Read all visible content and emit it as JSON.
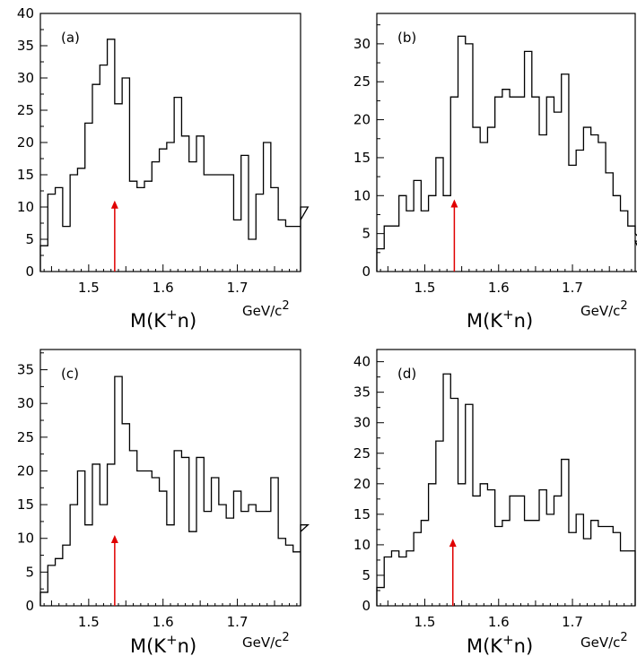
{
  "chart_data": [
    {
      "type": "histogram",
      "panel_label": "(a)",
      "xlabel_main": "M(K",
      "xlabel_sup": "+",
      "xlabel_tail": "n)",
      "xunit_main": "GeV/c",
      "xunit_sup": "2",
      "xlim": [
        1.435,
        1.785
      ],
      "ylim": [
        0,
        40
      ],
      "xticks": [
        1.5,
        1.6,
        1.7
      ],
      "xtick_labels": [
        "1.5",
        "1.6",
        "1.7"
      ],
      "yticks": [
        0,
        5,
        10,
        15,
        20,
        25,
        30,
        35,
        40
      ],
      "ytick_labels": [
        "0",
        "5",
        "10",
        "15",
        "20",
        "25",
        "30",
        "35",
        "40"
      ],
      "bin_edges_start": 1.435,
      "bin_width": 0.01,
      "counts": [
        4,
        12,
        13,
        7,
        15,
        16,
        23,
        29,
        32,
        36,
        26,
        30,
        14,
        13,
        14,
        17,
        19,
        20,
        27,
        21,
        17,
        21,
        15,
        15,
        15,
        15,
        8,
        18,
        5,
        12,
        20,
        13,
        8,
        7,
        7,
        8,
        10
      ],
      "arrow_x": 1.535,
      "arrow_y_top": 11,
      "arrow_color": "#e00000"
    },
    {
      "type": "histogram",
      "panel_label": "(b)",
      "xlabel_main": "M(K",
      "xlabel_sup": "+",
      "xlabel_tail": "n)",
      "xunit_main": "GeV/c",
      "xunit_sup": "2",
      "xlim": [
        1.435,
        1.785
      ],
      "ylim": [
        0,
        34
      ],
      "xticks": [
        1.5,
        1.6,
        1.7
      ],
      "xtick_labels": [
        "1.5",
        "1.6",
        "1.7"
      ],
      "yticks": [
        0,
        5,
        10,
        15,
        20,
        25,
        30
      ],
      "ytick_labels": [
        "0",
        "5",
        "10",
        "15",
        "20",
        "25",
        "30"
      ],
      "bin_edges_start": 1.435,
      "bin_width": 0.01,
      "counts": [
        3,
        6,
        6,
        10,
        8,
        12,
        8,
        10,
        15,
        10,
        23,
        31,
        30,
        19,
        17,
        19,
        23,
        24,
        23,
        23,
        29,
        23,
        18,
        23,
        21,
        26,
        14,
        16,
        19,
        18,
        17,
        13,
        10,
        8,
        6,
        5,
        4,
        0
      ],
      "arrow_x": 1.54,
      "arrow_y_top": 9.5,
      "arrow_color": "#e00000"
    },
    {
      "type": "histogram",
      "panel_label": "(c)",
      "xlabel_main": "M(K",
      "xlabel_sup": "+",
      "xlabel_tail": "n)",
      "xunit_main": "GeV/c",
      "xunit_sup": "2",
      "xlim": [
        1.435,
        1.785
      ],
      "ylim": [
        0,
        38
      ],
      "xticks": [
        1.5,
        1.6,
        1.7
      ],
      "xtick_labels": [
        "1.5",
        "1.6",
        "1.7"
      ],
      "yticks": [
        0,
        5,
        10,
        15,
        20,
        25,
        30,
        35
      ],
      "ytick_labels": [
        "0",
        "5",
        "10",
        "15",
        "20",
        "25",
        "30",
        "35"
      ],
      "bin_edges_start": 1.435,
      "bin_width": 0.01,
      "counts": [
        2,
        6,
        7,
        9,
        15,
        20,
        12,
        21,
        15,
        21,
        34,
        27,
        23,
        20,
        20,
        19,
        17,
        12,
        23,
        22,
        11,
        22,
        14,
        19,
        15,
        13,
        17,
        14,
        15,
        14,
        14,
        19,
        10,
        9,
        8,
        11,
        12
      ],
      "arrow_x": 1.535,
      "arrow_y_top": 10.5,
      "arrow_color": "#e00000"
    },
    {
      "type": "histogram",
      "panel_label": "(d)",
      "xlabel_main": "M(K",
      "xlabel_sup": "+",
      "xlabel_tail": "n)",
      "xunit_main": "GeV/c",
      "xunit_sup": "2",
      "xlim": [
        1.435,
        1.785
      ],
      "ylim": [
        0,
        42
      ],
      "xticks": [
        1.5,
        1.6,
        1.7
      ],
      "xtick_labels": [
        "1.5",
        "1.6",
        "1.7"
      ],
      "yticks": [
        0,
        5,
        10,
        15,
        20,
        25,
        30,
        35,
        40
      ],
      "ytick_labels": [
        "0",
        "5",
        "10",
        "15",
        "20",
        "25",
        "30",
        "35",
        "40"
      ],
      "bin_edges_start": 1.435,
      "bin_width": 0.01,
      "counts": [
        3,
        8,
        9,
        8,
        9,
        12,
        14,
        20,
        27,
        38,
        34,
        20,
        33,
        18,
        20,
        19,
        13,
        14,
        18,
        18,
        14,
        14,
        19,
        15,
        18,
        24,
        12,
        15,
        11,
        14,
        13,
        13,
        12,
        9,
        9
      ],
      "arrow_x": 1.538,
      "arrow_y_top": 11,
      "arrow_color": "#e00000"
    }
  ]
}
